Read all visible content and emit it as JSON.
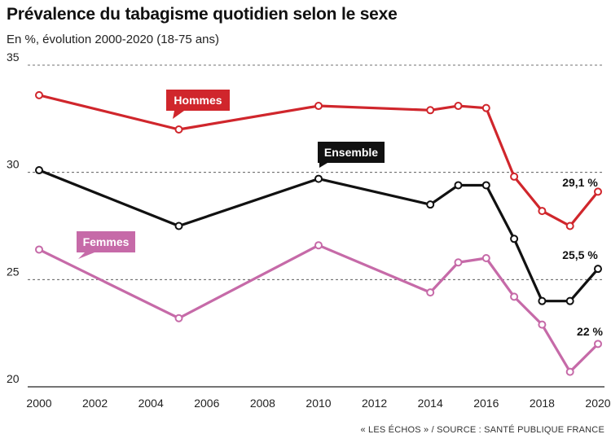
{
  "header": {
    "title": "Prévalence du tabagisme quotidien selon le sexe",
    "subtitle": "En %, évolution 2000-2020 (18-75 ans)"
  },
  "footer": {
    "source": "« LES ÉCHOS » / SOURCE : SANTÉ PUBLIQUE FRANCE"
  },
  "chart_data": {
    "type": "line",
    "title": "Prévalence du tabagisme quotidien selon le sexe",
    "subtitle": "En %, évolution 2000-2020 (18-75 ans)",
    "xlabel": "",
    "ylabel": "",
    "xlim": [
      2000,
      2020
    ],
    "ylim": [
      20,
      35
    ],
    "x_ticks": [
      "2000",
      "2002",
      "2004",
      "2006",
      "2008",
      "2010",
      "2012",
      "2014",
      "2016",
      "2018",
      "2020"
    ],
    "y_ticks": [
      "20",
      "25",
      "30",
      "35"
    ],
    "grid": "horizontal dashed",
    "series": [
      {
        "name": "Hommes",
        "color": "#d0262c",
        "x": [
          2000,
          2005,
          2010,
          2014,
          2015,
          2016,
          2017,
          2018,
          2019,
          2020
        ],
        "values": [
          33.6,
          32.0,
          33.1,
          32.9,
          33.1,
          33.0,
          29.8,
          28.2,
          27.5,
          29.1
        ],
        "end_label": "29,1 %"
      },
      {
        "name": "Ensemble",
        "color": "#111111",
        "x": [
          2000,
          2005,
          2010,
          2014,
          2015,
          2016,
          2017,
          2018,
          2019,
          2020
        ],
        "values": [
          30.1,
          27.5,
          29.7,
          28.5,
          29.4,
          29.4,
          26.9,
          24.0,
          24.0,
          25.5
        ],
        "end_label": "25,5 %"
      },
      {
        "name": "Femmes",
        "color": "#c66aa8",
        "x": [
          2000,
          2005,
          2010,
          2014,
          2015,
          2016,
          2017,
          2018,
          2019,
          2020
        ],
        "values": [
          26.4,
          23.2,
          26.6,
          24.4,
          25.8,
          26.0,
          24.2,
          22.9,
          20.7,
          22.0
        ],
        "end_label": "22 %"
      }
    ]
  }
}
